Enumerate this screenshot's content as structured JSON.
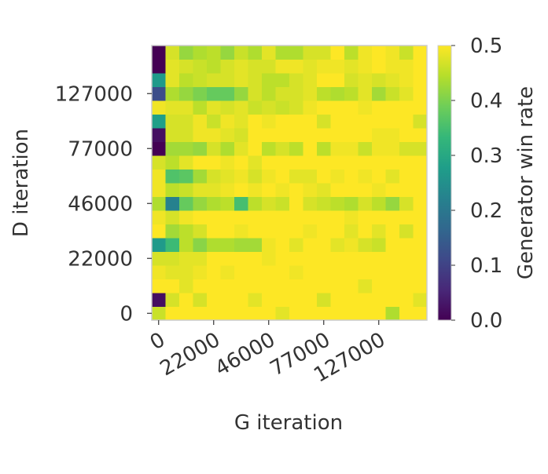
{
  "chart_data": {
    "type": "heatmap",
    "x_label": "G iteration",
    "y_label": "D iteration",
    "colorbar_label": "Generator win rate",
    "x_categories": [
      0,
      null,
      null,
      null,
      22000,
      null,
      null,
      null,
      46000,
      null,
      null,
      null,
      77000,
      null,
      null,
      null,
      127000,
      null,
      null,
      null
    ],
    "y_categories": [
      0,
      null,
      null,
      null,
      22000,
      null,
      null,
      null,
      46000,
      null,
      null,
      null,
      77000,
      null,
      null,
      null,
      127000,
      null,
      null,
      null
    ],
    "values": [
      [
        0.46,
        0.5,
        0.5,
        0.5,
        0.5,
        0.5,
        0.5,
        0.5,
        0.5,
        0.48,
        0.5,
        0.5,
        0.5,
        0.5,
        0.5,
        0.5,
        0.5,
        0.44,
        0.5,
        0.5
      ],
      [
        0.02,
        0.47,
        0.5,
        0.47,
        0.5,
        0.5,
        0.5,
        0.48,
        0.5,
        0.5,
        0.5,
        0.5,
        0.47,
        0.5,
        0.5,
        0.5,
        0.5,
        0.5,
        0.5,
        0.48
      ],
      [
        0.5,
        0.5,
        0.48,
        0.5,
        0.5,
        0.5,
        0.5,
        0.5,
        0.5,
        0.5,
        0.5,
        0.5,
        0.5,
        0.5,
        0.5,
        0.48,
        0.5,
        0.5,
        0.5,
        0.5
      ],
      [
        0.49,
        0.48,
        0.48,
        0.49,
        0.5,
        0.49,
        0.5,
        0.5,
        0.5,
        0.5,
        0.49,
        0.5,
        0.5,
        0.5,
        0.5,
        0.5,
        0.5,
        0.5,
        0.5,
        0.5
      ],
      [
        0.47,
        0.47,
        0.48,
        0.48,
        0.5,
        0.5,
        0.5,
        0.5,
        0.49,
        0.5,
        0.5,
        0.5,
        0.5,
        0.5,
        0.5,
        0.5,
        0.5,
        0.5,
        0.5,
        0.5
      ],
      [
        0.27,
        0.34,
        0.45,
        0.41,
        0.44,
        0.44,
        0.43,
        0.43,
        0.49,
        0.5,
        0.48,
        0.5,
        0.5,
        0.48,
        0.49,
        0.47,
        0.46,
        0.5,
        0.5,
        0.5
      ],
      [
        0.5,
        0.43,
        0.45,
        0.47,
        0.5,
        0.5,
        0.49,
        0.5,
        0.5,
        0.5,
        0.5,
        0.49,
        0.5,
        0.5,
        0.48,
        0.5,
        0.48,
        0.5,
        0.47,
        0.5
      ],
      [
        0.49,
        0.47,
        0.49,
        0.5,
        0.5,
        0.5,
        0.5,
        0.5,
        0.5,
        0.5,
        0.5,
        0.5,
        0.5,
        0.5,
        0.49,
        0.5,
        0.5,
        0.5,
        0.5,
        0.5
      ],
      [
        0.44,
        0.22,
        0.38,
        0.42,
        0.44,
        0.45,
        0.35,
        0.45,
        0.47,
        0.46,
        0.5,
        0.47,
        0.46,
        0.45,
        0.44,
        0.47,
        0.45,
        0.42,
        0.47,
        0.5
      ],
      [
        0.49,
        0.45,
        0.46,
        0.48,
        0.48,
        0.49,
        0.5,
        0.49,
        0.5,
        0.49,
        0.5,
        0.49,
        0.48,
        0.5,
        0.5,
        0.5,
        0.49,
        0.5,
        0.5,
        0.5
      ],
      [
        0.49,
        0.36,
        0.37,
        0.43,
        0.47,
        0.48,
        0.49,
        0.47,
        0.49,
        0.5,
        0.48,
        0.48,
        0.5,
        0.49,
        0.5,
        0.49,
        0.5,
        0.48,
        0.5,
        0.5
      ],
      [
        0.47,
        0.45,
        0.48,
        0.5,
        0.5,
        0.49,
        0.5,
        0.48,
        0.5,
        0.5,
        0.5,
        0.5,
        0.5,
        0.5,
        0.5,
        0.5,
        0.5,
        0.5,
        0.5,
        0.5
      ],
      [
        0.0,
        0.43,
        0.43,
        0.42,
        0.47,
        0.44,
        0.48,
        0.5,
        0.45,
        0.47,
        0.45,
        0.5,
        0.45,
        0.49,
        0.49,
        0.46,
        0.49,
        0.49,
        0.47,
        0.47
      ],
      [
        0.02,
        0.47,
        0.47,
        0.49,
        0.49,
        0.48,
        0.47,
        0.5,
        0.5,
        0.5,
        0.5,
        0.5,
        0.5,
        0.5,
        0.5,
        0.5,
        0.49,
        0.49,
        0.5,
        0.5
      ],
      [
        0.28,
        0.47,
        0.47,
        0.49,
        0.46,
        0.49,
        0.48,
        0.5,
        0.49,
        0.5,
        0.5,
        0.5,
        0.47,
        0.5,
        0.5,
        0.5,
        0.5,
        0.5,
        0.5,
        0.47
      ],
      [
        0.49,
        0.48,
        0.48,
        0.45,
        0.48,
        0.47,
        0.48,
        0.46,
        0.47,
        0.46,
        0.47,
        0.49,
        0.5,
        0.5,
        0.5,
        0.49,
        0.5,
        0.5,
        0.5,
        0.5
      ],
      [
        0.12,
        0.44,
        0.42,
        0.4,
        0.38,
        0.38,
        0.42,
        0.47,
        0.45,
        0.47,
        0.47,
        0.48,
        0.45,
        0.44,
        0.45,
        0.48,
        0.43,
        0.46,
        0.48,
        0.5
      ],
      [
        0.27,
        0.48,
        0.45,
        0.46,
        0.47,
        0.47,
        0.48,
        0.47,
        0.45,
        0.45,
        0.47,
        0.48,
        0.5,
        0.5,
        0.47,
        0.48,
        0.47,
        0.48,
        0.49,
        0.5
      ],
      [
        0.0,
        0.48,
        0.47,
        0.46,
        0.45,
        0.47,
        0.48,
        0.47,
        0.47,
        0.49,
        0.49,
        0.48,
        0.49,
        0.49,
        0.48,
        0.49,
        0.5,
        0.49,
        0.49,
        0.5
      ],
      [
        0.0,
        0.47,
        0.42,
        0.44,
        0.45,
        0.42,
        0.46,
        0.44,
        0.48,
        0.44,
        0.44,
        0.47,
        0.47,
        0.5,
        0.45,
        0.49,
        0.5,
        0.49,
        0.46,
        0.5
      ]
    ],
    "clim": [
      0,
      0.5
    ],
    "cticks": [
      {
        "value": 0,
        "label": "0.0"
      },
      0.1,
      0.2,
      0.3,
      0.4,
      0.5
    ],
    "colormap": [
      "#440154",
      "#482878",
      "#3e4989",
      "#31688e",
      "#26828e",
      "#1f9e89",
      "#35b779",
      "#6ece58",
      "#b5de2b",
      "#fde725"
    ]
  }
}
